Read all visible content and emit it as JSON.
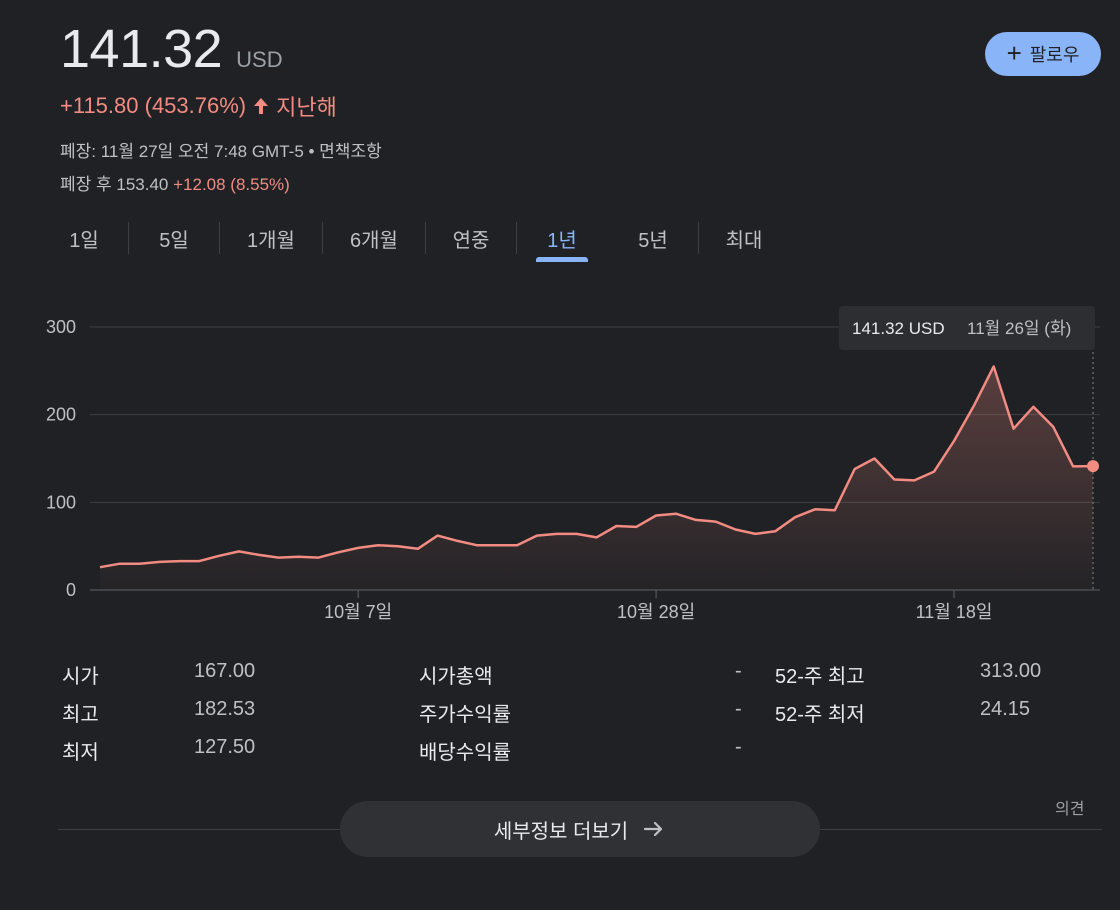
{
  "quote": {
    "price": "141.32",
    "currency": "USD",
    "change": "+115.80 (453.76%)",
    "change_period": "지난해",
    "closed_info": "폐장: 11월 27일 오전 7:48 GMT-5 • 면책조항",
    "after_hours_label": "폐장 후 153.40",
    "after_hours_change": "+12.08 (8.55%)"
  },
  "follow_button": {
    "label": "팔로우",
    "icon": "plus-icon"
  },
  "tabs": [
    {
      "label": "1일",
      "active": false
    },
    {
      "label": "5일",
      "active": false
    },
    {
      "label": "1개월",
      "active": false
    },
    {
      "label": "6개월",
      "active": false
    },
    {
      "label": "연중",
      "active": false
    },
    {
      "label": "1년",
      "active": true
    },
    {
      "label": "5년",
      "active": false
    },
    {
      "label": "최대",
      "active": false
    }
  ],
  "tooltip": {
    "price": "141.32 USD",
    "date": "11월 26일 (화)"
  },
  "chart_data": {
    "type": "area",
    "x_ticks": [
      "10월 7일",
      "10월 28일",
      "11월 18일"
    ],
    "x_tick_index": [
      13,
      28,
      43
    ],
    "y_ticks": [
      0,
      100,
      200,
      300
    ],
    "ylim": [
      0,
      300
    ],
    "color": "#f28b82",
    "grid": true,
    "values": [
      26,
      30,
      30,
      32,
      33,
      33,
      39,
      44,
      40,
      37,
      38,
      37,
      43,
      48,
      51,
      50,
      47,
      62,
      56,
      51,
      51,
      51,
      62,
      64,
      64,
      60,
      73,
      72,
      85,
      87,
      80,
      78,
      69,
      64,
      67,
      83,
      92,
      91,
      138,
      150,
      126,
      125,
      135,
      170,
      210,
      255,
      184,
      209,
      186,
      141,
      141.32
    ]
  },
  "stats": {
    "col1": [
      {
        "label": "시가",
        "value": "167.00"
      },
      {
        "label": "최고",
        "value": "182.53"
      },
      {
        "label": "최저",
        "value": "127.50"
      }
    ],
    "col2": [
      {
        "label": "시가총액",
        "value": "-"
      },
      {
        "label": "주가수익률",
        "value": "-"
      },
      {
        "label": "배당수익률",
        "value": "-"
      }
    ],
    "col3": [
      {
        "label": "52-주 최고",
        "value": "313.00"
      },
      {
        "label": "52-주 최저",
        "value": "24.15"
      }
    ]
  },
  "opinion_link": "의견",
  "more_button": {
    "label": "세부정보 더보기",
    "icon": "arrow-right-icon"
  }
}
